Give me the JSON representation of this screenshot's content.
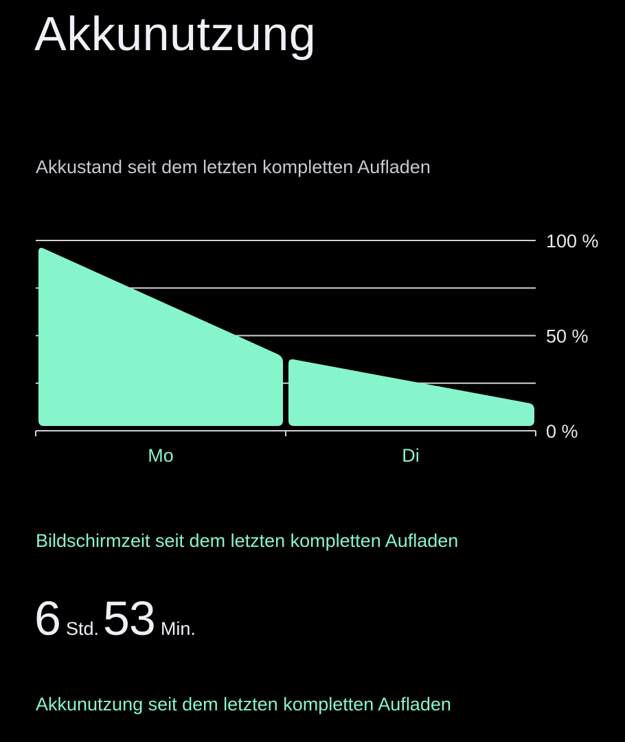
{
  "header": {
    "title": "Akkunutzung"
  },
  "battery_chart": {
    "caption": "Akkustand seit dem letzten kompletten Aufladen",
    "colors": {
      "fill": "#86f5cc",
      "grid": "#d0d2d8",
      "tick_label": "#e8eaf0",
      "day_label": "#86f5cc"
    }
  },
  "chart_data": {
    "type": "area",
    "title": "Akkustand seit dem letzten kompletten Aufladen",
    "y_tick_labels": [
      "100 %",
      "50 %",
      "0 %"
    ],
    "y_ticks": [
      100,
      50,
      0
    ],
    "ylim": [
      0,
      100
    ],
    "grid": true,
    "gridline_values": [
      100,
      75,
      50,
      25
    ],
    "categories": [
      "Mo",
      "Di"
    ],
    "series": [
      {
        "segments": [
          {
            "day": "Mo",
            "points": [
              [
                0,
                97
              ],
              [
                1,
                39
              ]
            ]
          },
          {
            "day": "Di",
            "points": [
              [
                0,
                38
              ],
              [
                1,
                14
              ]
            ]
          }
        ]
      }
    ]
  },
  "screen_time": {
    "heading": "Bildschirmzeit seit dem letzten kompletten Aufladen",
    "hours": "6",
    "hours_unit": "Std.",
    "minutes": "53",
    "minutes_unit": "Min."
  },
  "battery_usage": {
    "heading": "Akkunutzung seit dem letzten kompletten Aufladen"
  }
}
